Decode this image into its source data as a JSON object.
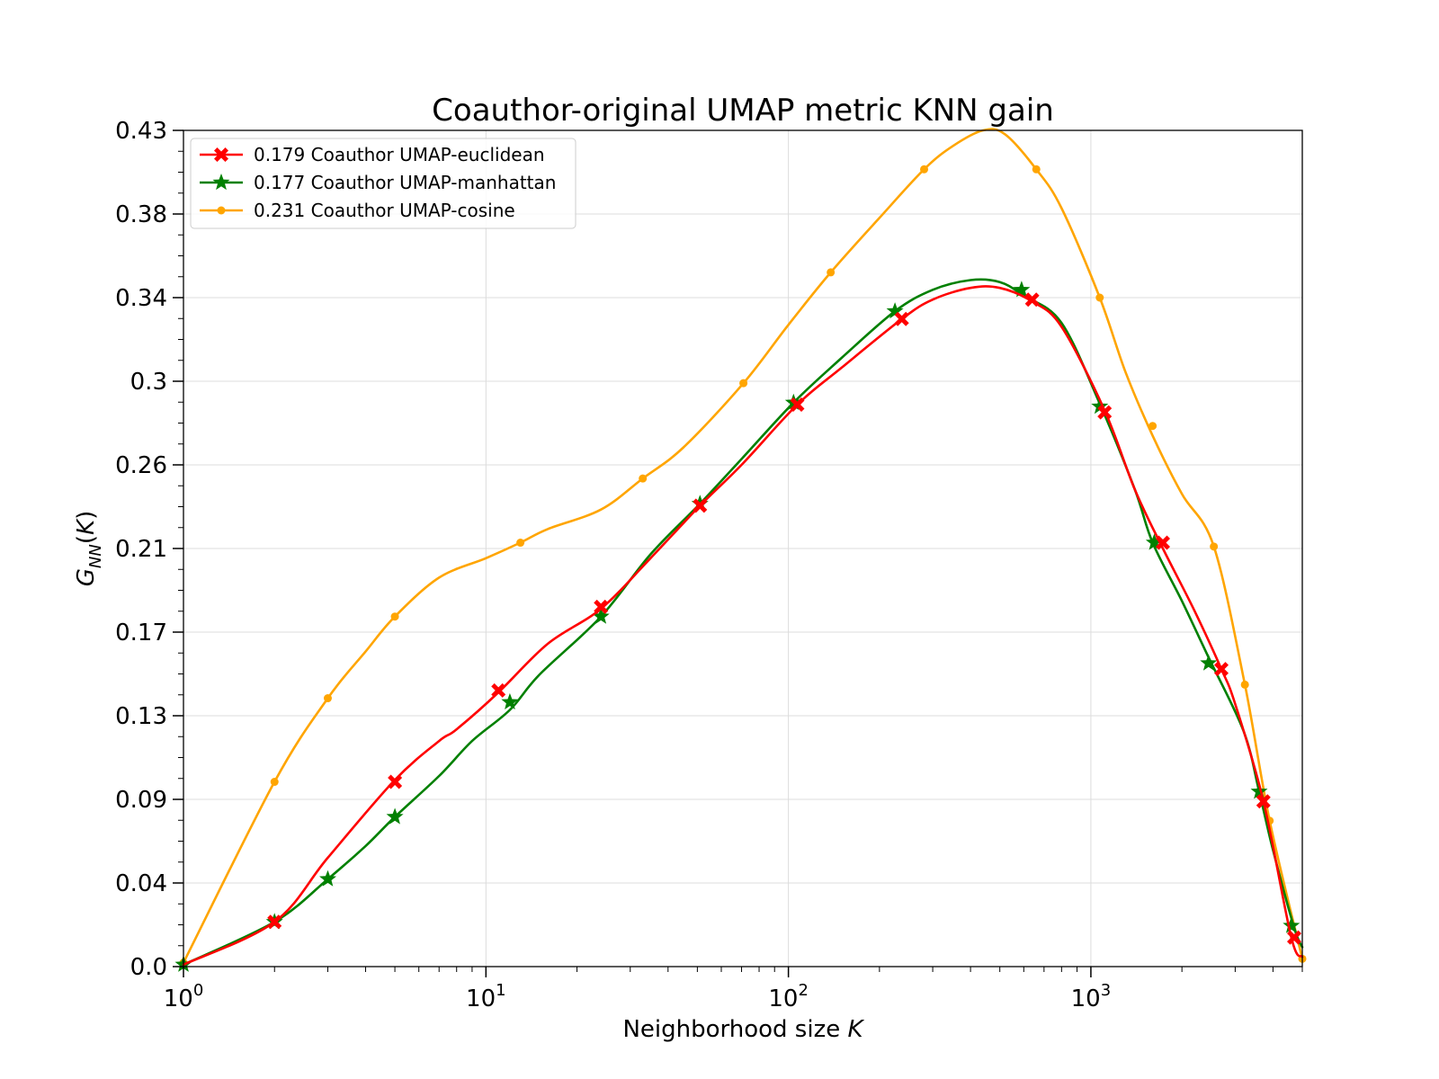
{
  "chart_data": {
    "type": "line",
    "title": "Coauthor-original UMAP metric KNN gain",
    "xlabel": "Neighborhood size K",
    "ylabel": "G_NN(K)",
    "xscale": "log",
    "xlim": [
      1,
      5000
    ],
    "ylim": [
      0.0,
      0.43
    ],
    "grid": true,
    "legend_position": "top-left",
    "x_ticks": [
      {
        "value": 1,
        "base": "10",
        "exp": "0"
      },
      {
        "value": 10,
        "base": "10",
        "exp": "1"
      },
      {
        "value": 100,
        "base": "10",
        "exp": "2"
      },
      {
        "value": 1000,
        "base": "10",
        "exp": "3"
      }
    ],
    "y_ticks": [
      {
        "value": 0.0,
        "label": "0.0"
      },
      {
        "value": 0.043,
        "label": "0.04"
      },
      {
        "value": 0.086,
        "label": "0.09"
      },
      {
        "value": 0.129,
        "label": "0.13"
      },
      {
        "value": 0.172,
        "label": "0.17"
      },
      {
        "value": 0.215,
        "label": "0.21"
      },
      {
        "value": 0.258,
        "label": "0.26"
      },
      {
        "value": 0.301,
        "label": "0.3"
      },
      {
        "value": 0.344,
        "label": "0.34"
      },
      {
        "value": 0.387,
        "label": "0.38"
      },
      {
        "value": 0.43,
        "label": "0.43"
      }
    ],
    "series": [
      {
        "name": "0.179 Coauthor UMAP-euclidean",
        "color": "#ff0000",
        "marker": "X",
        "x": [
          1,
          2,
          3,
          5,
          7,
          8,
          11,
          16,
          24,
          35,
          51,
          70,
          107,
          150,
          237,
          300,
          400,
          500,
          640,
          800,
          1110,
          1400,
          1730,
          2200,
          2700,
          3000,
          3720,
          4600,
          5000
        ],
        "y": [
          0.001,
          0.023,
          0.056,
          0.096,
          0.116,
          0.122,
          0.141,
          0.166,
          0.184,
          0.21,
          0.237,
          0.258,
          0.289,
          0.308,
          0.333,
          0.343,
          0.349,
          0.349,
          0.342,
          0.329,
          0.286,
          0.245,
          0.215,
          0.183,
          0.153,
          0.135,
          0.085,
          0.015,
          0.005
        ],
        "marker_x": [
          2,
          5,
          11,
          24,
          51,
          107,
          237,
          640,
          1110,
          1730,
          2700,
          3720,
          4700
        ],
        "marker_y": [
          0.023,
          0.095,
          0.142,
          0.185,
          0.237,
          0.289,
          0.333,
          0.343,
          0.285,
          0.218,
          0.153,
          0.085,
          0.015
        ]
      },
      {
        "name": "0.177 Coauthor UMAP-manhattan",
        "color": "#008000",
        "marker": "*",
        "x": [
          1,
          2,
          3,
          4,
          5,
          7,
          9,
          12,
          15,
          24,
          35,
          51,
          70,
          104,
          150,
          225,
          300,
          400,
          500,
          600,
          800,
          1080,
          1400,
          1600,
          2000,
          2450,
          3200,
          3600,
          4000,
          4700,
          5000
        ],
        "y": [
          0.001,
          0.023,
          0.045,
          0.062,
          0.077,
          0.098,
          0.116,
          0.132,
          0.15,
          0.18,
          0.212,
          0.238,
          0.261,
          0.29,
          0.313,
          0.337,
          0.348,
          0.353,
          0.352,
          0.345,
          0.331,
          0.288,
          0.245,
          0.218,
          0.188,
          0.159,
          0.121,
          0.09,
          0.06,
          0.02,
          0.01
        ],
        "marker_x": [
          1,
          2,
          3,
          5,
          12,
          24,
          51,
          104,
          225,
          590,
          1070,
          1620,
          2450,
          3600,
          4600
        ],
        "marker_y": [
          0.001,
          0.023,
          0.045,
          0.077,
          0.136,
          0.18,
          0.238,
          0.29,
          0.337,
          0.348,
          0.288,
          0.218,
          0.156,
          0.09,
          0.021
        ]
      },
      {
        "name": "0.231 Coauthor UMAP-cosine",
        "color": "#ffa500",
        "marker": "o",
        "x": [
          1,
          2,
          3,
          4,
          5,
          7,
          10,
          13,
          16,
          24,
          33,
          45,
          71,
          100,
          138,
          200,
          281,
          350,
          440,
          520,
          660,
          800,
          1070,
          1300,
          1600,
          2000,
          2550,
          3230,
          3900,
          5000
        ],
        "y": [
          0.002,
          0.095,
          0.138,
          0.162,
          0.18,
          0.2,
          0.21,
          0.218,
          0.225,
          0.235,
          0.251,
          0.267,
          0.3,
          0.33,
          0.357,
          0.385,
          0.41,
          0.422,
          0.43,
          0.428,
          0.41,
          0.39,
          0.344,
          0.306,
          0.273,
          0.243,
          0.216,
          0.145,
          0.075,
          0.004
        ],
        "marker_x": [
          1,
          2,
          3,
          5,
          13,
          33,
          71,
          138,
          281,
          660,
          1070,
          1600,
          2550,
          3230,
          3900,
          5000
        ],
        "marker_y": [
          0.002,
          0.095,
          0.138,
          0.18,
          0.218,
          0.251,
          0.3,
          0.357,
          0.41,
          0.41,
          0.344,
          0.278,
          0.216,
          0.145,
          0.075,
          0.004
        ]
      }
    ]
  }
}
